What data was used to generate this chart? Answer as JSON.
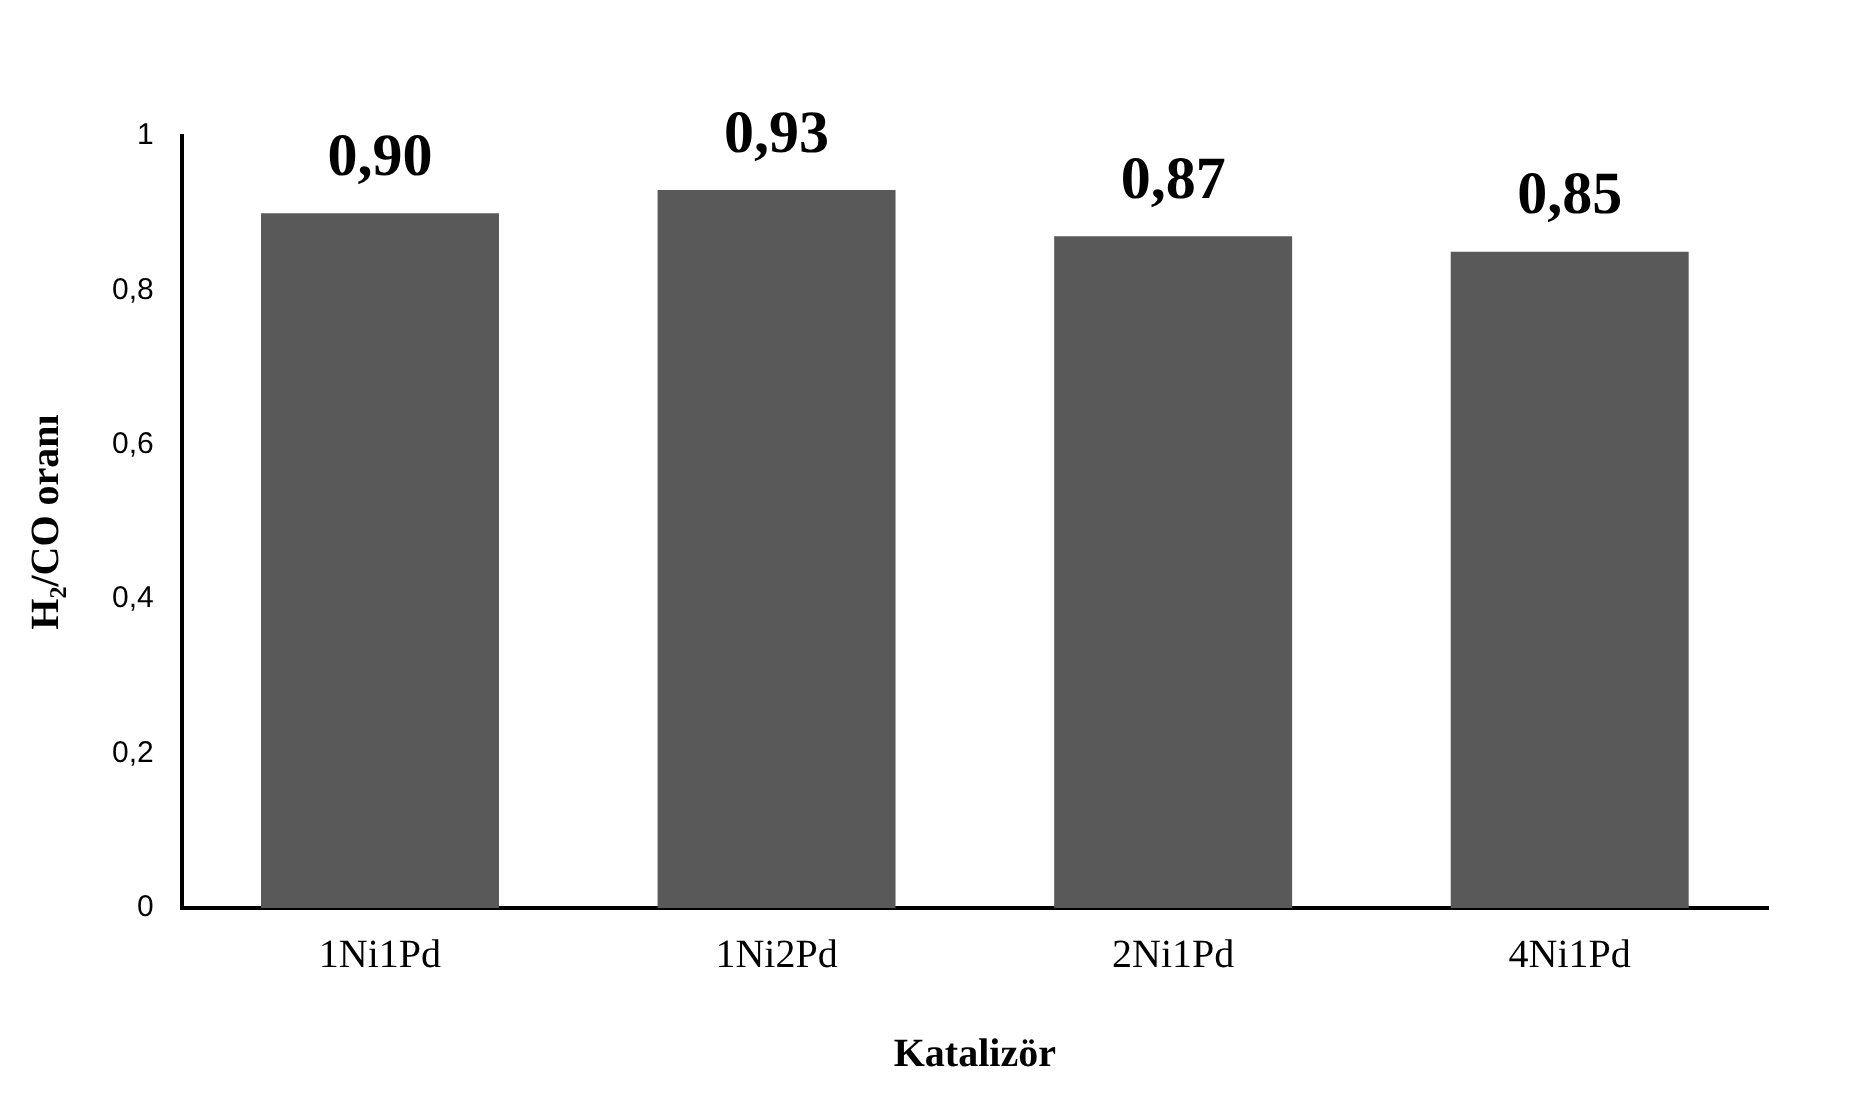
{
  "chart_data": {
    "type": "bar",
    "xlabel": "Katalizör",
    "ylabel": "H₂/CO oranı",
    "categories": [
      "1Ni1Pd",
      "1Ni2Pd",
      "2Ni1Pd",
      "4Ni1Pd"
    ],
    "values": [
      0.9,
      0.93,
      0.87,
      0.85
    ],
    "value_labels": [
      "0,90",
      "0,93",
      "0,87",
      "0,85"
    ],
    "color": "#595959",
    "ylim": [
      0,
      1
    ],
    "yticks": [
      {
        "value": 0,
        "label": "0"
      },
      {
        "value": 0.2,
        "label": "0,2"
      },
      {
        "value": 0.4,
        "label": "0,4"
      },
      {
        "value": 0.6,
        "label": "0,6"
      },
      {
        "value": 0.8,
        "label": "0,8"
      },
      {
        "value": 1,
        "label": "1"
      }
    ],
    "grid": false
  }
}
